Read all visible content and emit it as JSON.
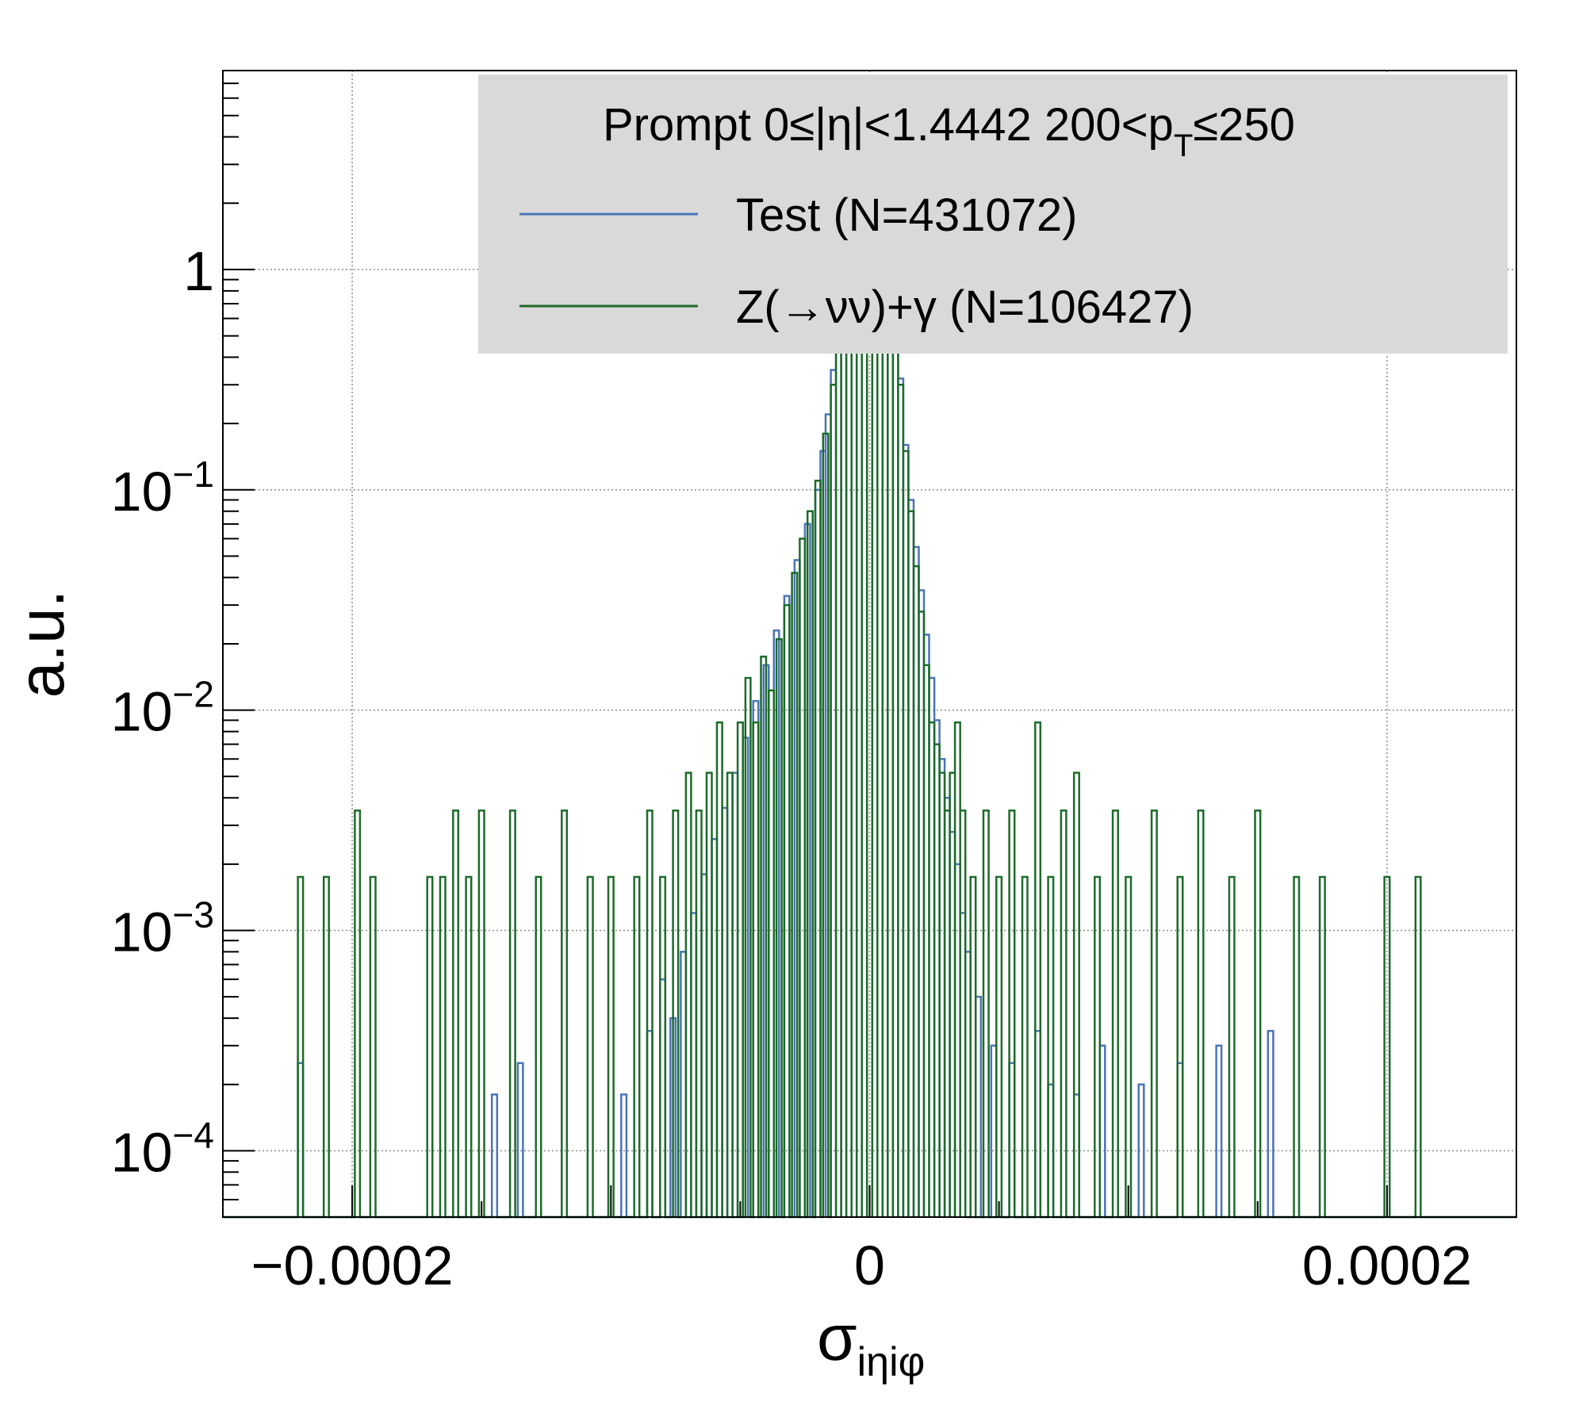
{
  "chart_data": {
    "type": "histogram-step",
    "title": "",
    "xlabel": {
      "main": "σ",
      "sub": "iηiφ"
    },
    "ylabel": "a.u.",
    "x_scale": "linear",
    "y_scale": "log",
    "xlim": [
      -0.00025,
      0.00025
    ],
    "ylim": [
      5e-05,
      8
    ],
    "grid": true,
    "x_ticks": [
      {
        "value": -0.0002,
        "label": "−0.0002"
      },
      {
        "value": 0,
        "label": "0"
      },
      {
        "value": 0.0002,
        "label": "0.0002"
      }
    ],
    "y_ticks": [
      {
        "value": 0.0001,
        "base": "10",
        "exp": "−4"
      },
      {
        "value": 0.001,
        "base": "10",
        "exp": "−3"
      },
      {
        "value": 0.01,
        "base": "10",
        "exp": "−2"
      },
      {
        "value": 0.1,
        "base": "10",
        "exp": "−1"
      },
      {
        "value": 1,
        "base": "1",
        "exp": ""
      }
    ],
    "legend": {
      "placement": "top-right",
      "header": {
        "pre": "Prompt  0≤|η|<1.4442  200<p",
        "sub": "T",
        "post": "≤250"
      },
      "background": "#d9d9d9"
    },
    "series": [
      {
        "name": "Test (N=431072)",
        "color": "#4a74b8",
        "points": [
          [
            -0.00022,
            0.00025
          ],
          [
            -0.000145,
            0.00018
          ],
          [
            -0.000135,
            0.00025
          ],
          [
            -9.5e-05,
            0.00018
          ],
          [
            -8.5e-05,
            0.00035
          ],
          [
            -8e-05,
            0.0006
          ],
          [
            -7.6e-05,
            0.0004
          ],
          [
            -7.2e-05,
            0.0008
          ],
          [
            -6.8e-05,
            0.0012
          ],
          [
            -6.4e-05,
            0.0018
          ],
          [
            -6e-05,
            0.0026
          ],
          [
            -5.6e-05,
            0.0036
          ],
          [
            -5.2e-05,
            0.0052
          ],
          [
            -4.8e-05,
            0.0075
          ],
          [
            -4.4e-05,
            0.011
          ],
          [
            -4e-05,
            0.016
          ],
          [
            -3.6e-05,
            0.023
          ],
          [
            -3.2e-05,
            0.033
          ],
          [
            -2.8e-05,
            0.048
          ],
          [
            -2.4e-05,
            0.07
          ],
          [
            -2e-05,
            0.1
          ],
          [
            -1.8e-05,
            0.15
          ],
          [
            -1.6e-05,
            0.22
          ],
          [
            -1.4e-05,
            0.35
          ],
          [
            -1.2e-05,
            0.6
          ],
          [
            -1e-05,
            1.0
          ],
          [
            -8e-06,
            1.8
          ],
          [
            -6e-06,
            3.0
          ],
          [
            -4e-06,
            4.5
          ],
          [
            -2e-06,
            5.5
          ],
          [
            0.0,
            5.8
          ],
          [
            2e-06,
            5.2
          ],
          [
            4e-06,
            3.8
          ],
          [
            6e-06,
            2.2
          ],
          [
            8e-06,
            1.2
          ],
          [
            1e-05,
            0.65
          ],
          [
            1.2e-05,
            0.32
          ],
          [
            1.4e-05,
            0.16
          ],
          [
            1.6e-05,
            0.09
          ],
          [
            1.8e-05,
            0.055
          ],
          [
            2e-05,
            0.035
          ],
          [
            2.2e-05,
            0.022
          ],
          [
            2.4e-05,
            0.014
          ],
          [
            2.6e-05,
            0.009
          ],
          [
            2.8e-05,
            0.006
          ],
          [
            3e-05,
            0.004
          ],
          [
            3.2e-05,
            0.0028
          ],
          [
            3.4e-05,
            0.002
          ],
          [
            3.6e-05,
            0.0012
          ],
          [
            3.8e-05,
            0.0008
          ],
          [
            4.2e-05,
            0.0005
          ],
          [
            4.8e-05,
            0.0003
          ],
          [
            5.5e-05,
            0.00025
          ],
          [
            6.5e-05,
            0.00035
          ],
          [
            7e-05,
            0.0002
          ],
          [
            8e-05,
            0.00018
          ],
          [
            9e-05,
            0.0003
          ],
          [
            0.000105,
            0.0002
          ],
          [
            0.00012,
            0.00025
          ],
          [
            0.000135,
            0.0003
          ],
          [
            0.000155,
            0.00035
          ]
        ]
      },
      {
        "name": "Z(→νν)+γ (N=106427)",
        "color": "#1d6b2a",
        "points": [
          [
            -0.00022,
            0.00175
          ],
          [
            -0.00021,
            0.00175
          ],
          [
            -0.000198,
            0.0035
          ],
          [
            -0.000192,
            0.00175
          ],
          [
            -0.00017,
            0.00175
          ],
          [
            -0.000165,
            0.00175
          ],
          [
            -0.00016,
            0.0035
          ],
          [
            -0.000155,
            0.00175
          ],
          [
            -0.00015,
            0.0035
          ],
          [
            -0.000138,
            0.0035
          ],
          [
            -0.000128,
            0.00175
          ],
          [
            -0.000118,
            0.0035
          ],
          [
            -0.000108,
            0.00175
          ],
          [
            -0.0001,
            0.00175
          ],
          [
            -9e-05,
            0.00175
          ],
          [
            -8.5e-05,
            0.0035
          ],
          [
            -8e-05,
            0.00175
          ],
          [
            -7.5e-05,
            0.0035
          ],
          [
            -7e-05,
            0.0052
          ],
          [
            -6.6e-05,
            0.0035
          ],
          [
            -6.2e-05,
            0.0052
          ],
          [
            -5.8e-05,
            0.0088
          ],
          [
            -5.4e-05,
            0.0052
          ],
          [
            -5e-05,
            0.0088
          ],
          [
            -4.7e-05,
            0.014
          ],
          [
            -4.4e-05,
            0.0088
          ],
          [
            -4.1e-05,
            0.0175
          ],
          [
            -3.8e-05,
            0.0123
          ],
          [
            -3.5e-05,
            0.021
          ],
          [
            -3.2e-05,
            0.03
          ],
          [
            -2.9e-05,
            0.042
          ],
          [
            -2.6e-05,
            0.06
          ],
          [
            -2.3e-05,
            0.08
          ],
          [
            -2e-05,
            0.11
          ],
          [
            -1.7e-05,
            0.18
          ],
          [
            -1.4e-05,
            0.3
          ],
          [
            -1.2e-05,
            0.55
          ],
          [
            -1e-05,
            1.0
          ],
          [
            -8e-06,
            1.9
          ],
          [
            -6e-06,
            3.2
          ],
          [
            -4e-06,
            4.6
          ],
          [
            -2e-06,
            5.6
          ],
          [
            0.0,
            5.9
          ],
          [
            2e-06,
            5.1
          ],
          [
            4e-06,
            3.9
          ],
          [
            6e-06,
            2.3
          ],
          [
            8e-06,
            1.2
          ],
          [
            1e-05,
            0.6
          ],
          [
            1.2e-05,
            0.3
          ],
          [
            1.4e-05,
            0.15
          ],
          [
            1.6e-05,
            0.08
          ],
          [
            1.8e-05,
            0.045
          ],
          [
            2e-05,
            0.028
          ],
          [
            2.2e-05,
            0.016
          ],
          [
            2.4e-05,
            0.0088
          ],
          [
            2.6e-05,
            0.007
          ],
          [
            2.8e-05,
            0.0052
          ],
          [
            3e-05,
            0.0035
          ],
          [
            3.2e-05,
            0.0052
          ],
          [
            3.4e-05,
            0.0088
          ],
          [
            3.6e-05,
            0.0035
          ],
          [
            4e-05,
            0.00175
          ],
          [
            4.5e-05,
            0.0035
          ],
          [
            5e-05,
            0.00175
          ],
          [
            5.5e-05,
            0.0035
          ],
          [
            6e-05,
            0.00175
          ],
          [
            6.5e-05,
            0.0088
          ],
          [
            7e-05,
            0.00175
          ],
          [
            7.5e-05,
            0.0035
          ],
          [
            8e-05,
            0.0052
          ],
          [
            8.8e-05,
            0.00175
          ],
          [
            9.5e-05,
            0.0035
          ],
          [
            0.0001,
            0.00175
          ],
          [
            0.00011,
            0.0035
          ],
          [
            0.00012,
            0.00175
          ],
          [
            0.000128,
            0.0035
          ],
          [
            0.00014,
            0.00175
          ],
          [
            0.00015,
            0.0035
          ],
          [
            0.000165,
            0.00175
          ],
          [
            0.000175,
            0.00175
          ],
          [
            0.0002,
            0.00175
          ],
          [
            0.000212,
            0.00175
          ]
        ]
      }
    ]
  }
}
